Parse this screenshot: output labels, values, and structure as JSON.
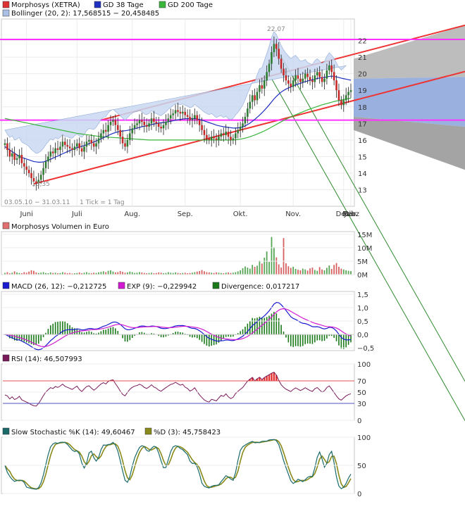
{
  "colors": {
    "up": "#2e7d32",
    "down": "#c62828",
    "gd38": "#1f2fbf",
    "gd200": "#3bb53b",
    "bollinger_fill": "#c9d9f2",
    "bollinger_line": "#7f9dd0",
    "magenta": "#ff33ff",
    "channel_red": "#ee3333",
    "trend_green": "#2e8b2e",
    "macd": "#1a1ad0",
    "exp": "#d21ad2",
    "divergence": "#1a7a1a",
    "rsi": "#7a1a5a",
    "stoch_k": "#1a6a6a",
    "stoch_d": "#8a8a1a"
  },
  "chart_data": [
    {
      "type": "candlestick",
      "legend": [
        {
          "label": "Morphosys (XETRA)",
          "color": "#d33"
        },
        {
          "label": "GD 38 Tage",
          "color": "#1f2fbf"
        },
        {
          "label": "GD 200 Tage",
          "color": "#3bb53b"
        },
        {
          "label": "Bollinger (20, 2): 17,568515 − 20,458485",
          "color": "#a9bfe6"
        }
      ],
      "y_ticks": [
        13,
        14,
        15,
        16,
        17,
        18,
        19,
        20,
        21,
        22
      ],
      "ylim": [
        12.0,
        23.3
      ],
      "months": [
        "Juni",
        "Juli",
        "Aug.",
        "Sep.",
        "Okt.",
        "Nov.",
        "Dez.",
        "Jan.",
        "Feb.",
        "März"
      ],
      "date_range": "03.05.10 − 31.03.11",
      "tick_note": "1 Tick = 1 Tag",
      "high_label": "22,07",
      "low_label": "13,35",
      "horizontal_lines": [
        22.07,
        17.2
      ],
      "close": [
        15.8,
        15.4,
        15.0,
        15.2,
        14.8,
        14.9,
        15.1,
        14.6,
        14.4,
        14.2,
        14.0,
        13.7,
        13.5,
        13.4,
        13.6,
        13.9,
        14.3,
        14.7,
        15.0,
        15.3,
        15.2,
        15.5,
        15.4,
        15.6,
        15.9,
        15.7,
        15.6,
        15.5,
        15.4,
        15.6,
        15.8,
        15.5,
        15.3,
        15.6,
        15.9,
        16.0,
        15.8,
        15.6,
        15.8,
        16.1,
        16.4,
        16.6,
        16.5,
        16.9,
        17.1,
        17.2,
        16.9,
        16.6,
        16.2,
        15.8,
        15.6,
        16.0,
        16.4,
        16.7,
        16.9,
        17.0,
        17.2,
        17.1,
        16.9,
        16.8,
        17.0,
        17.3,
        17.1,
        17.0,
        16.8,
        16.7,
        16.9,
        17.1,
        17.3,
        17.5,
        17.6,
        17.8,
        17.7,
        17.6,
        17.7,
        17.5,
        17.4,
        17.2,
        17.3,
        17.5,
        17.2,
        16.9,
        16.6,
        16.3,
        16.1,
        16.0,
        16.2,
        16.1,
        16.0,
        16.2,
        16.4,
        16.3,
        16.5,
        16.2,
        16.0,
        16.1,
        16.4,
        16.6,
        16.8,
        17.0,
        17.4,
        17.9,
        18.3,
        18.7,
        18.4,
        18.9,
        19.3,
        19.1,
        19.6,
        20.1,
        20.6,
        21.3,
        21.8,
        21.5,
        20.9,
        20.3,
        19.9,
        19.6,
        19.4,
        19.2,
        19.6,
        19.9,
        19.7,
        19.5,
        19.7,
        20.0,
        19.8,
        19.6,
        19.5,
        19.9,
        20.1,
        19.8,
        19.5,
        19.7,
        20.2,
        20.5,
        20.1,
        19.6,
        19.0,
        18.4,
        18.1,
        18.4,
        18.7,
        18.9,
        19.0
      ],
      "ma38": [
        15.6,
        15.5,
        15.4,
        15.3,
        15.2,
        15.1,
        15.0,
        14.95,
        14.9,
        14.85,
        14.8,
        14.75,
        14.7,
        14.68,
        14.66,
        14.66,
        14.68,
        14.72,
        14.78,
        14.84,
        14.9,
        14.97,
        15.03,
        15.1,
        15.17,
        15.23,
        15.3,
        15.36,
        15.42,
        15.48,
        15.54,
        15.58,
        15.62,
        15.66,
        15.72,
        15.78,
        15.83,
        15.88,
        15.94,
        16.0,
        16.07,
        16.14,
        16.2,
        16.27,
        16.34,
        16.4,
        16.45,
        16.49,
        16.52,
        16.54,
        16.56,
        16.58,
        16.61,
        16.64,
        16.68,
        16.72,
        16.76,
        16.8,
        16.83,
        16.86,
        16.89,
        16.93,
        16.96,
        16.99,
        17.02,
        17.04,
        17.06,
        17.08,
        17.1,
        17.13,
        17.16,
        17.19,
        17.22,
        17.24,
        17.26,
        17.28,
        17.29,
        17.29,
        17.29,
        17.29,
        17.27,
        17.24,
        17.2,
        17.15,
        17.1,
        17.05,
        17.0,
        16.95,
        16.9,
        16.86,
        16.83,
        16.8,
        16.78,
        16.76,
        16.74,
        16.72,
        16.72,
        16.73,
        16.75,
        16.79,
        16.85,
        16.93,
        17.02,
        17.13,
        17.24,
        17.37,
        17.5,
        17.64,
        17.79,
        17.95,
        18.12,
        18.3,
        18.48,
        18.63,
        18.77,
        18.89,
        18.99,
        19.07,
        19.14,
        19.2,
        19.26,
        19.32,
        19.37,
        19.42,
        19.47,
        19.52,
        19.56,
        19.6,
        19.63,
        19.67,
        19.71,
        19.74,
        19.76,
        19.78,
        19.81,
        19.84,
        19.85,
        19.84,
        19.81,
        19.77,
        19.73,
        19.7,
        19.67,
        19.64,
        19.61
      ],
      "ma200": [
        17.3,
        17.27,
        17.24,
        17.21,
        17.18,
        17.15,
        17.12,
        17.09,
        17.06,
        17.03,
        17.0,
        16.97,
        16.94,
        16.91,
        16.88,
        16.85,
        16.82,
        16.79,
        16.76,
        16.73,
        16.7,
        16.67,
        16.64,
        16.61,
        16.58,
        16.55,
        16.52,
        16.49,
        16.46,
        16.43,
        16.4,
        16.38,
        16.36,
        16.34,
        16.32,
        16.3,
        16.28,
        16.26,
        16.24,
        16.22,
        16.2,
        16.19,
        16.18,
        16.17,
        16.16,
        16.15,
        16.14,
        16.13,
        16.12,
        16.11,
        16.1,
        16.09,
        16.08,
        16.07,
        16.06,
        16.05,
        16.04,
        16.03,
        16.02,
        16.01,
        16.0,
        16.0,
        16.0,
        16.0,
        16.0,
        16.0,
        16.0,
        16.0,
        16.0,
        16.0,
        16.0,
        16.0,
        16.0,
        16.0,
        16.0,
        16.0,
        16.0,
        16.0,
        16.0,
        16.0,
        16.0,
        16.0,
        16.0,
        16.0,
        16.0,
        16.0,
        16.0,
        16.0,
        16.0,
        16.0,
        16.0,
        16.0,
        16.0,
        16.0,
        16.0,
        16.0,
        16.01,
        16.03,
        16.05,
        16.08,
        16.11,
        16.15,
        16.2,
        16.25,
        16.3,
        16.36,
        16.42,
        16.48,
        16.55,
        16.62,
        16.7,
        16.78,
        16.86,
        16.94,
        17.02,
        17.1,
        17.18,
        17.25,
        17.32,
        17.39,
        17.46,
        17.52,
        17.58,
        17.64,
        17.7,
        17.76,
        17.82,
        17.87,
        17.92,
        17.97,
        18.02,
        18.07,
        18.12,
        18.16,
        18.2,
        18.24,
        18.28,
        18.32,
        18.35,
        18.38,
        18.41,
        18.44,
        18.47,
        18.5,
        18.53
      ],
      "bollinger_width": [
        0.9,
        0.9,
        0.95,
        1.0,
        1.0,
        1.05,
        1.1,
        1.1,
        1.15,
        1.2,
        1.2,
        1.2,
        1.2,
        1.15,
        1.1,
        1.05,
        1.0,
        1.0,
        1.0,
        1.0,
        0.95,
        0.9,
        0.85,
        0.8,
        0.8,
        0.75,
        0.75,
        0.7,
        0.7,
        0.7,
        0.7,
        0.7,
        0.7,
        0.7,
        0.75,
        0.8,
        0.85,
        0.9,
        0.9,
        0.95,
        1.0,
        1.0,
        1.05,
        1.05,
        1.05,
        1.05,
        1.05,
        1.05,
        1.1,
        1.15,
        1.1,
        1.05,
        1.0,
        0.95,
        0.9,
        0.85,
        0.8,
        0.75,
        0.7,
        0.7,
        0.65,
        0.65,
        0.6,
        0.6,
        0.6,
        0.6,
        0.6,
        0.6,
        0.65,
        0.65,
        0.7,
        0.7,
        0.7,
        0.7,
        0.7,
        0.7,
        0.7,
        0.7,
        0.7,
        0.75,
        0.8,
        0.85,
        0.9,
        0.95,
        1.0,
        1.0,
        1.0,
        0.95,
        0.9,
        0.9,
        0.85,
        0.8,
        0.8,
        0.8,
        0.85,
        0.9,
        0.95,
        1.0,
        1.1,
        1.2,
        1.3,
        1.4,
        1.5,
        1.6,
        1.7,
        1.8,
        1.9,
        2.0,
        2.1,
        2.2,
        2.3,
        2.4,
        2.4,
        2.3,
        2.2,
        2.1,
        2.0,
        1.9,
        1.8,
        1.7,
        1.6,
        1.5,
        1.4,
        1.3,
        1.2,
        1.1,
        1.0,
        1.0,
        1.0,
        1.0,
        1.0,
        1.0,
        1.0,
        1.0,
        1.05,
        1.1,
        1.15,
        1.2,
        1.25,
        1.3,
        1.3,
        1.3,
        1.3
      ]
    },
    {
      "type": "bar",
      "title": "Morphosys Volumen in Euro",
      "y_ticks": [
        "0M",
        "5M",
        "10M",
        "15M"
      ],
      "ylim": [
        0,
        16
      ],
      "volume_millions": [
        0.6,
        0.9,
        0.5,
        0.7,
        1.2,
        0.8,
        0.6,
        0.5,
        0.9,
        0.7,
        1.1,
        1.6,
        1.4,
        0.8,
        0.6,
        0.7,
        0.9,
        0.6,
        0.5,
        0.8,
        0.6,
        0.7,
        0.5,
        0.6,
        0.9,
        0.7,
        0.5,
        0.6,
        0.4,
        0.5,
        0.6,
        0.8,
        0.5,
        0.7,
        0.9,
        0.6,
        0.5,
        0.7,
        0.6,
        0.8,
        1.0,
        1.2,
        0.9,
        1.4,
        1.6,
        1.1,
        0.8,
        0.9,
        1.3,
        1.0,
        0.7,
        0.8,
        1.1,
        0.9,
        0.6,
        0.7,
        0.9,
        0.8,
        0.6,
        0.5,
        0.6,
        0.7,
        0.5,
        0.6,
        0.8,
        0.7,
        0.5,
        0.6,
        0.9,
        0.7,
        0.6,
        0.8,
        0.6,
        0.5,
        0.6,
        0.7,
        0.5,
        0.6,
        0.7,
        0.9,
        1.1,
        1.3,
        1.7,
        1.2,
        0.9,
        0.8,
        0.7,
        0.6,
        0.8,
        0.7,
        0.6,
        0.5,
        0.7,
        0.8,
        0.6,
        0.7,
        0.9,
        1.2,
        1.6,
        2.4,
        3.0,
        2.6,
        2.2,
        3.6,
        2.9,
        3.3,
        5.2,
        4.1,
        6.3,
        8.6,
        4.7,
        14.0,
        10.2,
        6.4,
        3.8,
        2.6,
        13.6,
        4.2,
        3.1,
        2.5,
        2.9,
        2.1,
        1.8,
        1.6,
        2.2,
        1.9,
        1.5,
        2.3,
        2.6,
        1.7,
        1.4,
        2.8,
        1.9,
        1.6,
        2.5,
        3.4,
        2.1,
        3.6,
        4.3,
        2.9,
        2.2,
        1.9,
        1.6,
        1.4,
        1.3
      ]
    },
    {
      "type": "line",
      "legend": [
        {
          "label": "MACD (26, 12): −0,212725",
          "color": "#1a1ad0"
        },
        {
          "label": "EXP (9): −0,229942",
          "color": "#d21ad2"
        },
        {
          "label": "Divergence: 0,017217",
          "color": "#1a7a1a"
        }
      ],
      "y_ticks": [
        "1,5",
        "1,0",
        "0,5",
        "0,0",
        "−0,5"
      ],
      "y_values": [
        1.5,
        1.0,
        0.5,
        0.0,
        -0.5
      ],
      "ylim": [
        -0.6,
        1.6
      ]
    },
    {
      "type": "line",
      "legend": [
        {
          "label": "RSI (14): 46,507993",
          "color": "#7a1a5a"
        }
      ],
      "y_ticks": [
        "100",
        "70",
        "50",
        "30",
        "0"
      ],
      "y_values": [
        100,
        70,
        50,
        30,
        0
      ],
      "ylim": [
        0,
        100
      ],
      "levels": [
        70,
        30
      ]
    },
    {
      "type": "line",
      "legend": [
        {
          "label": "Slow Stochastic %K (14): 49,60467",
          "color": "#1a6a6a"
        },
        {
          "label": "%D (3): 45,758423",
          "color": "#8a8a1a"
        }
      ],
      "y_ticks": [
        "100",
        "50",
        "0"
      ],
      "y_values": [
        100,
        50,
        0
      ],
      "ylim": [
        0,
        100
      ]
    }
  ]
}
